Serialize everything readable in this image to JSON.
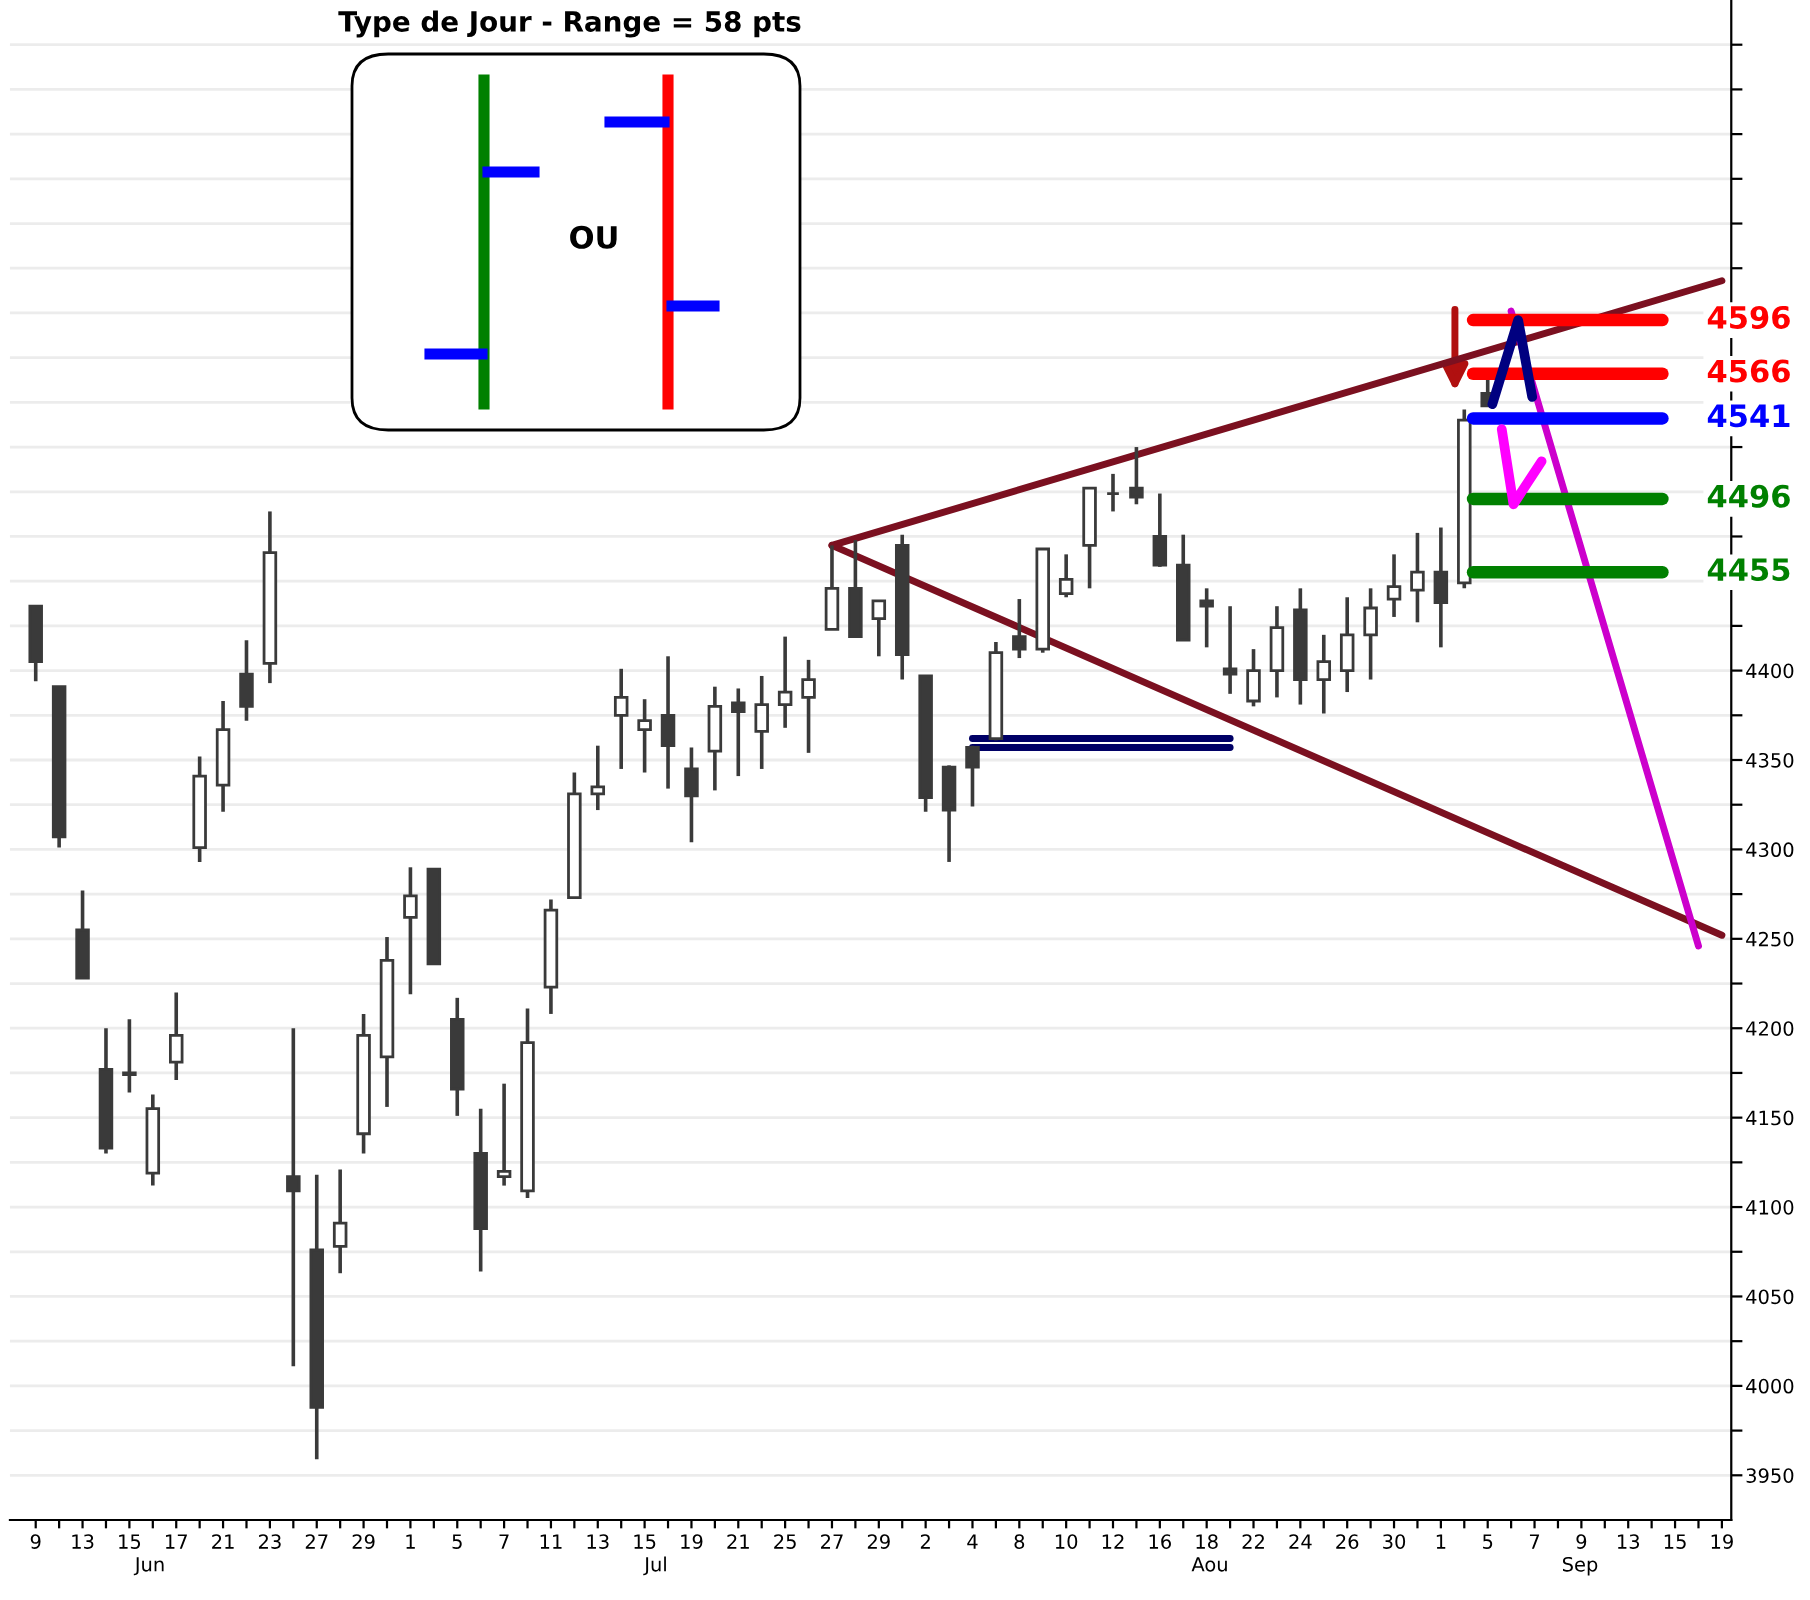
{
  "chart_data": {
    "type": "candlestick",
    "title": "Type de Jour - Range = 58 pts",
    "color": "#3a3a3a",
    "categories": [
      "9",
      null,
      "13",
      null,
      "15",
      null,
      "17",
      null,
      "21",
      null,
      "23",
      null,
      "27",
      null,
      "29",
      null,
      "1",
      null,
      "5",
      null,
      "7",
      null,
      "11",
      null,
      "13",
      null,
      "15",
      null,
      "19",
      null,
      "21",
      null,
      "25",
      null,
      "27",
      null,
      "29",
      null,
      "2",
      null,
      "4",
      null,
      "8",
      null,
      "10",
      null,
      "12",
      null,
      "16",
      null,
      "18",
      null,
      "22",
      null,
      "24",
      null,
      "26",
      null,
      "30",
      null,
      "1",
      null,
      "5",
      null,
      "7",
      null,
      "9",
      null,
      "13",
      null,
      "15",
      null,
      "19"
    ],
    "ohlc": [
      [
        4436,
        4436,
        4394,
        4405
      ],
      [
        4391,
        4391,
        4301,
        4307
      ],
      [
        4255,
        4277,
        4228,
        4228
      ],
      [
        4177,
        4200,
        4130,
        4133
      ],
      [
        4175,
        4205,
        4164,
        4174
      ],
      [
        4119,
        4163,
        4112,
        4155
      ],
      [
        4181,
        4220,
        4171,
        4196
      ],
      [
        4301,
        4352,
        4293,
        4341
      ],
      [
        4336,
        4383,
        4321,
        4367
      ],
      [
        4398,
        4417,
        4372,
        4380
      ],
      [
        4404,
        4489,
        4393,
        4466
      ],
      [
        4117,
        4200,
        4011,
        4109
      ],
      [
        4076,
        4118,
        3959,
        3988
      ],
      [
        4078,
        4121,
        4063,
        4091
      ],
      [
        4141,
        4208,
        4130,
        4196
      ],
      [
        4184,
        4251,
        4156,
        4238
      ],
      [
        4262,
        4290,
        4219,
        4274
      ],
      [
        4289,
        4289,
        4236,
        4236
      ],
      [
        4205,
        4217,
        4151,
        4166
      ],
      [
        4130,
        4155,
        4064,
        4088
      ],
      [
        4117,
        4169,
        4112,
        4120
      ],
      [
        4109,
        4211,
        4105,
        4192
      ],
      [
        4223,
        4272,
        4208,
        4266
      ],
      [
        4273,
        4343,
        4273,
        4331
      ],
      [
        4331,
        4358,
        4322,
        4335
      ],
      [
        4375,
        4401,
        4345,
        4385
      ],
      [
        4367,
        4384,
        4343,
        4372
      ],
      [
        4375,
        4408,
        4334,
        4358
      ],
      [
        4345,
        4357,
        4304,
        4330
      ],
      [
        4355,
        4391,
        4333,
        4380
      ],
      [
        4382,
        4390,
        4341,
        4377
      ],
      [
        4366,
        4397,
        4345,
        4381
      ],
      [
        4381,
        4419,
        4368,
        4388
      ],
      [
        4385,
        4406,
        4354,
        4395
      ],
      [
        4423,
        4470,
        4423,
        4446
      ],
      [
        4446,
        4473,
        4419,
        4419
      ],
      [
        4429,
        4439,
        4408,
        4439
      ],
      [
        4470,
        4476,
        4395,
        4409
      ],
      [
        4397,
        4397,
        4321,
        4329
      ],
      [
        4346,
        4347,
        4293,
        4322
      ],
      [
        4357,
        4358,
        4324,
        4346
      ],
      [
        4362,
        4416,
        4361,
        4410
      ],
      [
        4419,
        4440,
        4407,
        4412
      ],
      [
        4412,
        4468,
        4410,
        4468
      ],
      [
        4443,
        4465,
        4441,
        4451
      ],
      [
        4470,
        4502,
        4446,
        4502
      ],
      [
        4499,
        4510,
        4489,
        4499
      ],
      [
        4502,
        4525,
        4493,
        4497
      ],
      [
        4475,
        4499,
        4458,
        4459
      ],
      [
        4459,
        4476,
        4417,
        4417
      ],
      [
        4439,
        4446,
        4413,
        4436
      ],
      [
        4401,
        4436,
        4387,
        4398
      ],
      [
        4383,
        4412,
        4380,
        4400
      ],
      [
        4400,
        4436,
        4385,
        4424
      ],
      [
        4434,
        4446,
        4381,
        4395
      ],
      [
        4395,
        4420,
        4376,
        4405
      ],
      [
        4400,
        4441,
        4388,
        4420
      ],
      [
        4420,
        4446,
        4395,
        4435
      ],
      [
        4440,
        4465,
        4430,
        4447
      ],
      [
        4445,
        4477,
        4427,
        4455
      ],
      [
        4455,
        4480,
        4413,
        4438
      ],
      [
        4449,
        4546,
        4446,
        4540
      ],
      [
        4555,
        4565,
        4548,
        4548
      ],
      null,
      null,
      null,
      null,
      null,
      null,
      null,
      null,
      null,
      null
    ],
    "series": [
      {
        "type": "line",
        "color": "#7b1020",
        "values": [
          null,
          null,
          null,
          null,
          null,
          null,
          null,
          null,
          null,
          null,
          null,
          null,
          null,
          null,
          null,
          null,
          null,
          null,
          null,
          null,
          null,
          null,
          null,
          null,
          null,
          null,
          null,
          null,
          null,
          null,
          null,
          null,
          null,
          null,
          4470,
          null,
          null,
          null,
          null,
          null,
          null,
          null,
          null,
          null,
          null,
          null,
          null,
          null,
          null,
          null,
          null,
          null,
          null,
          null,
          null,
          null,
          null,
          null,
          null,
          null,
          null,
          null,
          null,
          null,
          null,
          null,
          null,
          null,
          null,
          null,
          null,
          null,
          4618
        ]
      },
      {
        "type": "line",
        "color": "#7b1020",
        "values": [
          null,
          null,
          null,
          null,
          null,
          null,
          null,
          null,
          null,
          null,
          null,
          null,
          null,
          null,
          null,
          null,
          null,
          null,
          null,
          null,
          null,
          null,
          null,
          null,
          null,
          null,
          null,
          null,
          null,
          null,
          null,
          null,
          null,
          null,
          4470,
          null,
          null,
          null,
          null,
          null,
          null,
          null,
          null,
          null,
          null,
          null,
          null,
          null,
          null,
          null,
          null,
          null,
          null,
          null,
          null,
          null,
          null,
          null,
          null,
          null,
          null,
          null,
          null,
          null,
          null,
          null,
          null,
          null,
          null,
          null,
          null,
          null,
          4252
        ]
      },
      {
        "type": "line",
        "color": "#000066",
        "values": [
          null,
          null,
          null,
          null,
          null,
          null,
          null,
          null,
          null,
          null,
          null,
          null,
          null,
          null,
          null,
          null,
          null,
          null,
          null,
          null,
          null,
          null,
          null,
          null,
          null,
          null,
          null,
          null,
          null,
          null,
          null,
          null,
          null,
          null,
          null,
          null,
          null,
          null,
          null,
          null,
          4362,
          null,
          null,
          null,
          null,
          null,
          null,
          null,
          null,
          null,
          null,
          4362,
          null,
          null,
          null,
          null,
          null,
          null,
          null,
          null,
          null,
          null,
          null,
          null,
          null,
          null,
          null,
          null,
          null,
          null,
          null,
          null,
          null
        ]
      },
      {
        "type": "line",
        "color": "#000066",
        "values": [
          null,
          null,
          null,
          null,
          null,
          null,
          null,
          null,
          null,
          null,
          null,
          null,
          null,
          null,
          null,
          null,
          null,
          null,
          null,
          null,
          null,
          null,
          null,
          null,
          null,
          null,
          null,
          null,
          null,
          null,
          null,
          null,
          null,
          null,
          null,
          null,
          null,
          null,
          null,
          null,
          4357,
          null,
          null,
          null,
          null,
          null,
          null,
          null,
          null,
          null,
          null,
          4357,
          null,
          null,
          null,
          null,
          null,
          null,
          null,
          null,
          null,
          null,
          null,
          null,
          null,
          null,
          null,
          null,
          null,
          null,
          null,
          null,
          null
        ]
      },
      {
        "type": "line",
        "color": "#cc00cc",
        "values": [
          null,
          null,
          null,
          null,
          null,
          null,
          null,
          null,
          null,
          null,
          null,
          null,
          null,
          null,
          null,
          null,
          null,
          null,
          null,
          null,
          null,
          null,
          null,
          null,
          null,
          null,
          null,
          null,
          null,
          null,
          null,
          null,
          null,
          null,
          null,
          null,
          null,
          null,
          null,
          null,
          null,
          null,
          null,
          null,
          null,
          null,
          null,
          null,
          null,
          null,
          null,
          null,
          null,
          null,
          null,
          null,
          null,
          null,
          null,
          null,
          null,
          null,
          null,
          4601,
          null,
          null,
          null,
          null,
          null,
          null,
          null,
          4246,
          null
        ]
      }
    ],
    "ref_lines": [
      {
        "axis": "y",
        "value": 4596,
        "label": "4596",
        "color": "#ff0000"
      },
      {
        "axis": "y",
        "value": 4566,
        "label": "4566",
        "color": "#ff0000"
      },
      {
        "axis": "y",
        "value": 4541,
        "label": "4541",
        "color": "#0000ff"
      },
      {
        "axis": "y",
        "value": 4496,
        "label": "4496",
        "color": "#008000"
      },
      {
        "axis": "y",
        "value": 4455,
        "label": "4455",
        "color": "#008000"
      }
    ],
    "annotations": [
      "OU",
      "Jun",
      "Jul",
      "Aou",
      "Sep"
    ],
    "ylim": [
      3925,
      4775
    ],
    "yticks": [
      3950,
      {
        "value": 3975,
        "label": null
      },
      4000,
      {
        "value": 4025,
        "label": null
      },
      4050,
      {
        "value": 4075,
        "label": null
      },
      4100,
      {
        "value": 4125,
        "label": null
      },
      4150,
      {
        "value": 4175,
        "label": null
      },
      4200,
      {
        "value": 4225,
        "label": null
      },
      4250,
      {
        "value": 4275,
        "label": null
      },
      4300,
      {
        "value": 4325,
        "label": null
      },
      4350,
      {
        "value": 4375,
        "label": null
      },
      4400,
      {
        "value": 4425,
        "label": null
      },
      {
        "value": 4450,
        "label": null
      },
      {
        "value": 4475,
        "label": null
      },
      {
        "value": 4500,
        "label": null
      },
      {
        "value": 4525,
        "label": null
      },
      {
        "value": 4550,
        "label": null
      },
      {
        "value": 4575,
        "label": null
      },
      {
        "value": 4600,
        "label": null
      },
      {
        "value": 4625,
        "label": null
      },
      {
        "value": 4650,
        "label": null
      },
      {
        "value": 4675,
        "label": null
      },
      {
        "value": 4700,
        "label": null
      },
      {
        "value": 4725,
        "label": null
      },
      {
        "value": 4750,
        "label": null
      }
    ],
    "grid": "y",
    "legend": false
  }
}
